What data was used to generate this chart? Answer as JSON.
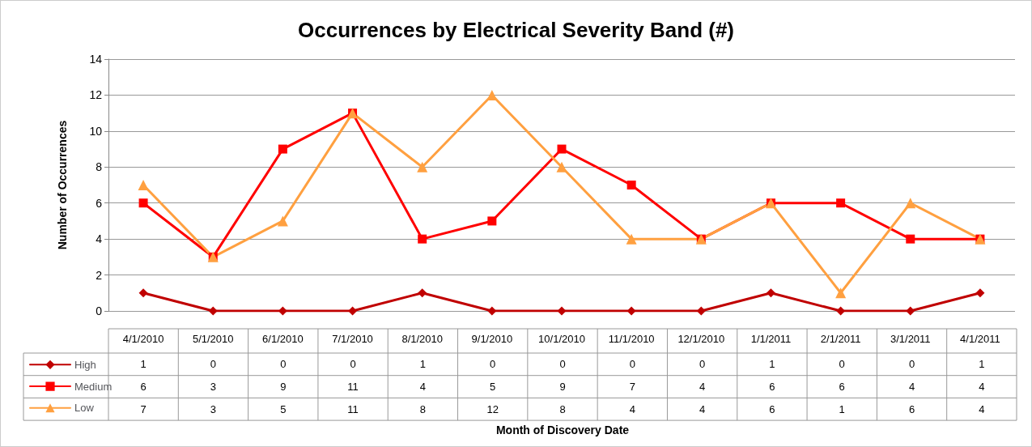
{
  "chart_data": {
    "type": "line",
    "title": "Occurrences by Electrical Severity Band (#)",
    "annotations": [
      "Month of Discovery Date"
    ],
    "ylabel": "Number of Occurrences",
    "categories": [
      "4/1/2010",
      "5/1/2010",
      "6/1/2010",
      "7/1/2010",
      "8/1/2010",
      "9/1/2010",
      "10/1/2010",
      "11/1/2010",
      "12/1/2010",
      "1/1/2011",
      "2/1/2011",
      "3/1/2011",
      "4/1/2011"
    ],
    "series": [
      {
        "name": "High",
        "color": "#c00000",
        "marker": "diamond",
        "values": [
          1,
          0,
          0,
          0,
          1,
          0,
          0,
          0,
          0,
          1,
          0,
          0,
          1
        ]
      },
      {
        "name": "Medium",
        "color": "#ff0000",
        "marker": "square",
        "values": [
          6,
          3,
          9,
          11,
          4,
          5,
          9,
          7,
          4,
          6,
          6,
          4,
          4
        ]
      },
      {
        "name": "Low",
        "color": "#ffa040",
        "marker": "triangle",
        "values": [
          7,
          3,
          5,
          11,
          8,
          12,
          8,
          4,
          4,
          6,
          1,
          6,
          4
        ]
      }
    ],
    "ylim": [
      0,
      14
    ],
    "yticks": [
      0,
      2,
      4,
      6,
      8,
      10,
      12,
      14
    ],
    "grid": "y",
    "legend": "bottom left",
    "data_labels": true,
    "line_style": "solid"
  }
}
